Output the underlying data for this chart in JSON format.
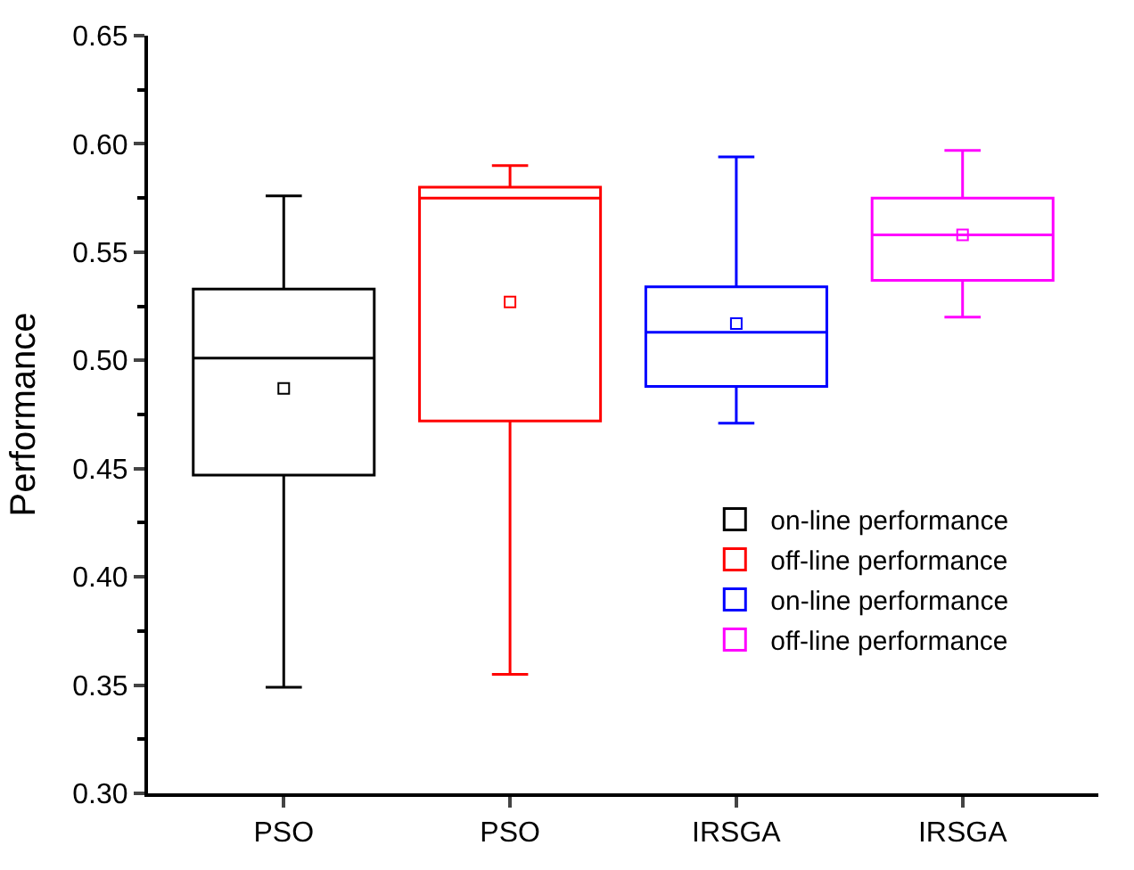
{
  "chart_data": {
    "type": "box",
    "ylabel": "Performance",
    "categories": [
      "PSO",
      "PSO",
      "IRSGA",
      "IRSGA"
    ],
    "series": [
      {
        "name": "on-line performance",
        "color": "#000000",
        "boxes": [
          {
            "low": 0.349,
            "q1": 0.447,
            "median": 0.501,
            "q3": 0.533,
            "high": 0.576,
            "mean": 0.487
          },
          null,
          null,
          null
        ]
      },
      {
        "name": "off-line performance",
        "color": "#ff0000",
        "boxes": [
          null,
          {
            "low": 0.355,
            "q1": 0.472,
            "median": 0.575,
            "q3": 0.58,
            "high": 0.59,
            "mean": 0.527
          },
          null,
          null
        ]
      },
      {
        "name": "on-line performance",
        "color": "#0000ff",
        "boxes": [
          null,
          null,
          {
            "low": 0.471,
            "q1": 0.488,
            "median": 0.513,
            "q3": 0.534,
            "high": 0.594,
            "mean": 0.517
          },
          null
        ]
      },
      {
        "name": "off-line performance",
        "color": "#ff00ff",
        "boxes": [
          null,
          null,
          null,
          {
            "low": 0.52,
            "q1": 0.537,
            "median": 0.558,
            "q3": 0.575,
            "high": 0.597,
            "mean": 0.558
          }
        ]
      }
    ],
    "ylim": [
      0.3,
      0.65
    ],
    "yticks": [
      {
        "value": 0.3,
        "label": "0.30"
      },
      {
        "value": 0.35,
        "label": "0.35"
      },
      {
        "value": 0.4,
        "label": "0.40"
      },
      {
        "value": 0.45,
        "label": "0.45"
      },
      {
        "value": 0.5,
        "label": "0.50"
      },
      {
        "value": 0.55,
        "label": "0.55"
      },
      {
        "value": 0.6,
        "label": "0.60"
      },
      {
        "value": 0.65,
        "label": "0.65"
      }
    ],
    "legend": "right",
    "marker": "square"
  }
}
